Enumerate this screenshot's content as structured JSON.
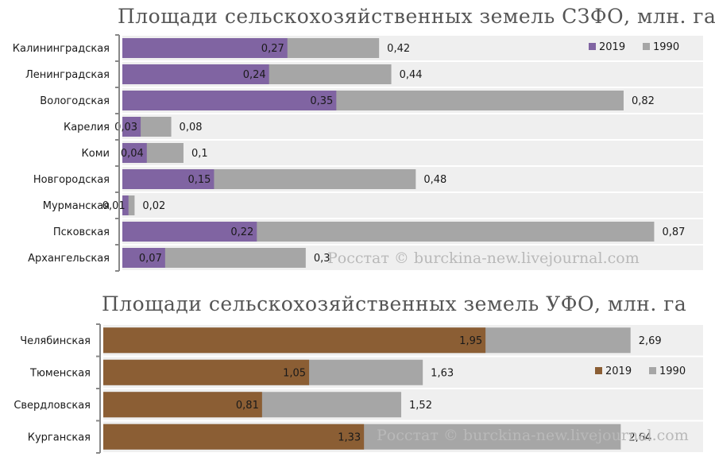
{
  "chart_data": [
    {
      "type": "bar",
      "orientation": "horizontal",
      "title": "Площади сельскохозяйственных земель СЗФО, млн. га",
      "categories": [
        "Калининградская",
        "Ленинградская",
        "Вологодская",
        "Карелия",
        "Коми",
        "Новгородская",
        "Мурманская",
        "Псковская",
        "Архангельская"
      ],
      "series": [
        {
          "name": "2019",
          "values": [
            0.27,
            0.24,
            0.35,
            0.03,
            0.04,
            0.15,
            0.01,
            0.22,
            0.07
          ],
          "labels": [
            "0,27",
            "0,24",
            "0,35",
            "0,03",
            "0,04",
            "0,15",
            "0,01",
            "0,22",
            "0,07"
          ],
          "color": "#8064a2"
        },
        {
          "name": "1990",
          "values": [
            0.42,
            0.44,
            0.82,
            0.08,
            0.1,
            0.48,
            0.02,
            0.87,
            0.3
          ],
          "labels": [
            "0,42",
            "0,44",
            "0,82",
            "0,08",
            "0,1",
            "0,48",
            "0,02",
            "0,87",
            "0,3"
          ],
          "color": "#a6a6a6"
        }
      ],
      "xlim": [
        0,
        0.95
      ],
      "legend": "top-right",
      "grid": false,
      "watermark": "Росстат © burckina-new.livejournal.com"
    },
    {
      "type": "bar",
      "orientation": "horizontal",
      "title": "Площади сельскохозяйственных земель УФО, млн. га",
      "categories": [
        "Челябинская",
        "Тюменская",
        "Свердловская",
        "Курганская"
      ],
      "series": [
        {
          "name": "2019",
          "values": [
            1.95,
            1.05,
            0.81,
            1.33
          ],
          "labels": [
            "1,95",
            "1,05",
            "0,81",
            "1,33"
          ],
          "color": "#8b5e34"
        },
        {
          "name": "1990",
          "values": [
            2.69,
            1.63,
            1.52,
            2.64
          ],
          "labels": [
            "2,69",
            "1,63",
            "1,52",
            "2,64"
          ],
          "color": "#a6a6a6"
        }
      ],
      "xlim": [
        0,
        3.06
      ],
      "legend": "right",
      "grid": false,
      "watermark": "Росстат © burckina-new.livejournal.com"
    }
  ]
}
